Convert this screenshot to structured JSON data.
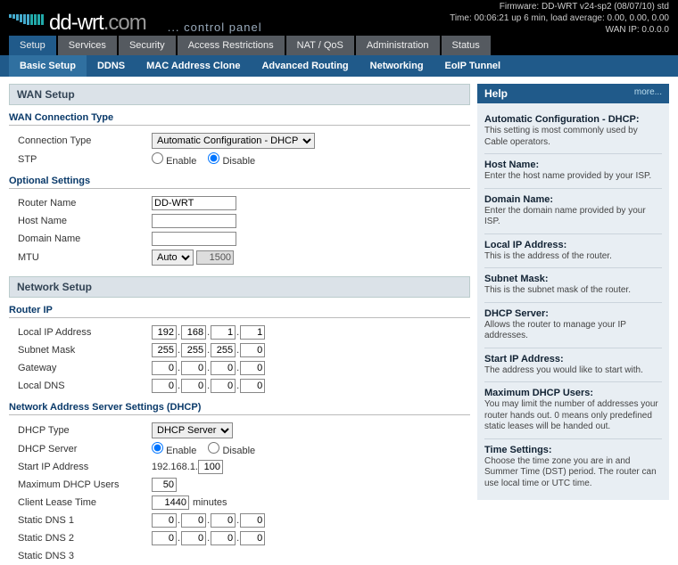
{
  "sysinfo": {
    "firmware": "Firmware: DD-WRT v24-sp2 (08/07/10) std",
    "time": "Time: 00:06:21 up 6 min, load average: 0.00, 0.00, 0.00",
    "wanip": "WAN IP: 0.0.0.0"
  },
  "logo": {
    "brand": "dd-wrt",
    "ext": ".com",
    "subtitle": "... control panel"
  },
  "main_tabs": [
    "Setup",
    "Services",
    "Security",
    "Access Restrictions",
    "NAT / QoS",
    "Administration",
    "Status"
  ],
  "main_active": 0,
  "sub_tabs": [
    "Basic Setup",
    "DDNS",
    "MAC Address Clone",
    "Advanced Routing",
    "Networking",
    "EoIP Tunnel"
  ],
  "sub_active": 0,
  "wan": {
    "section_title": "WAN Setup",
    "subsection": "WAN Connection Type",
    "conn_label": "Connection Type",
    "conn_value": "Automatic Configuration - DHCP",
    "stp_label": "STP",
    "enable": "Enable",
    "disable": "Disable",
    "stp_value": "disable"
  },
  "optional": {
    "subsection": "Optional Settings",
    "router_name_label": "Router Name",
    "router_name": "DD-WRT",
    "host_name_label": "Host Name",
    "host_name": "",
    "domain_name_label": "Domain Name",
    "domain_name": "",
    "mtu_label": "MTU",
    "mtu_mode": "Auto",
    "mtu_value": "1500"
  },
  "network": {
    "section_title": "Network Setup",
    "router_ip_sub": "Router IP",
    "local_ip_label": "Local IP Address",
    "local_ip": [
      "192",
      "168",
      "1",
      "1"
    ],
    "subnet_label": "Subnet Mask",
    "subnet": [
      "255",
      "255",
      "255",
      "0"
    ],
    "gateway_label": "Gateway",
    "gateway": [
      "0",
      "0",
      "0",
      "0"
    ],
    "localdns_label": "Local DNS",
    "localdns": [
      "0",
      "0",
      "0",
      "0"
    ]
  },
  "dhcp": {
    "subsection": "Network Address Server Settings (DHCP)",
    "type_label": "DHCP Type",
    "type_value": "DHCP Server",
    "server_label": "DHCP Server",
    "server_value": "enable",
    "enable": "Enable",
    "disable": "Disable",
    "start_label": "Start IP Address",
    "start_prefix": "192.168.1.",
    "start_value": "100",
    "max_label": "Maximum DHCP Users",
    "max_value": "50",
    "lease_label": "Client Lease Time",
    "lease_value": "1440",
    "lease_units": "minutes",
    "dns1_label": "Static DNS 1",
    "dns1": [
      "0",
      "0",
      "0",
      "0"
    ],
    "dns2_label": "Static DNS 2",
    "dns2": [
      "0",
      "0",
      "0",
      "0"
    ],
    "dns3_label": "Static DNS 3"
  },
  "help": {
    "title": "Help",
    "more": "more...",
    "items": [
      {
        "h": "Automatic Configuration - DHCP:",
        "p": "This setting is most commonly used by Cable operators."
      },
      {
        "h": "Host Name:",
        "p": "Enter the host name provided by your ISP."
      },
      {
        "h": "Domain Name:",
        "p": "Enter the domain name provided by your ISP."
      },
      {
        "h": "Local IP Address:",
        "p": "This is the address of the router."
      },
      {
        "h": "Subnet Mask:",
        "p": "This is the subnet mask of the router."
      },
      {
        "h": "DHCP Server:",
        "p": "Allows the router to manage your IP addresses."
      },
      {
        "h": "Start IP Address:",
        "p": "The address you would like to start with."
      },
      {
        "h": "Maximum DHCP Users:",
        "p": "You may limit the number of addresses your router hands out. 0 means only predefined static leases will be handed out."
      },
      {
        "h": "Time Settings:",
        "p": "Choose the time zone you are in and Summer Time (DST) period. The router can use local time or UTC time."
      }
    ]
  }
}
